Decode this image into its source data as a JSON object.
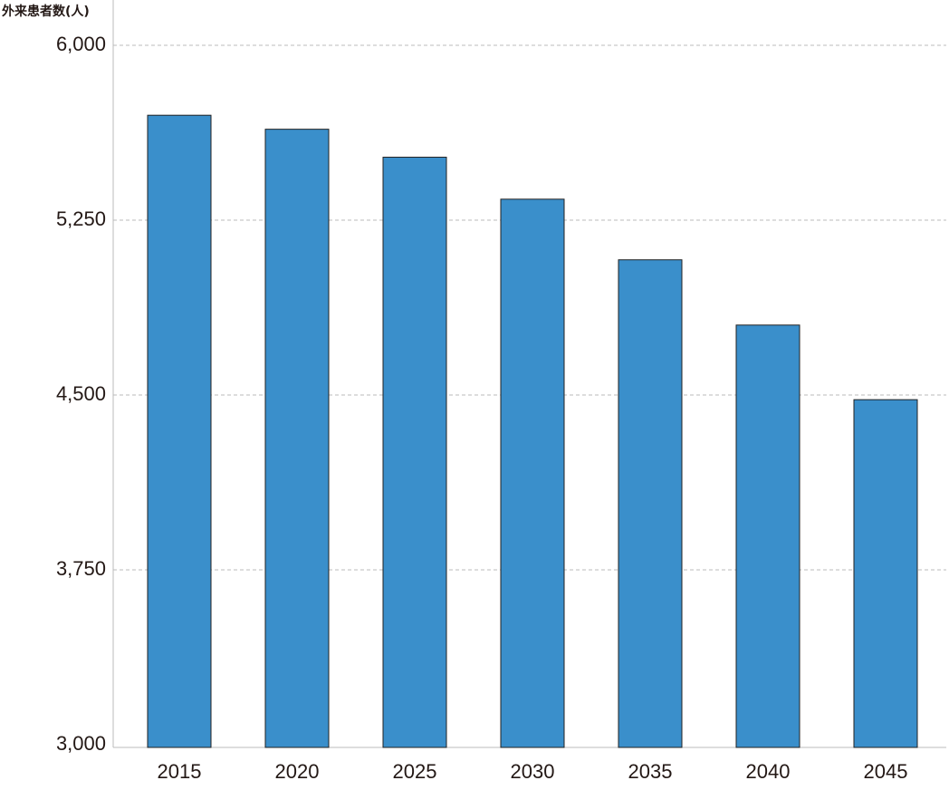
{
  "chart_data": {
    "type": "bar",
    "y_label": "外来患者数(人)",
    "categories": [
      "2015",
      "2020",
      "2025",
      "2030",
      "2035",
      "2040",
      "2045"
    ],
    "values": [
      5700,
      5640,
      5520,
      5340,
      5080,
      4800,
      4480
    ],
    "color": "#3a8fcb",
    "ylim": [
      3000,
      6000
    ],
    "yticks": [
      {
        "value": 3000,
        "label": "3,000"
      },
      {
        "value": 3750,
        "label": "3,750"
      },
      {
        "value": 4500,
        "label": "4,500"
      },
      {
        "value": 5250,
        "label": "5,250"
      },
      {
        "value": 6000,
        "label": "6,000"
      }
    ],
    "grid": true
  }
}
